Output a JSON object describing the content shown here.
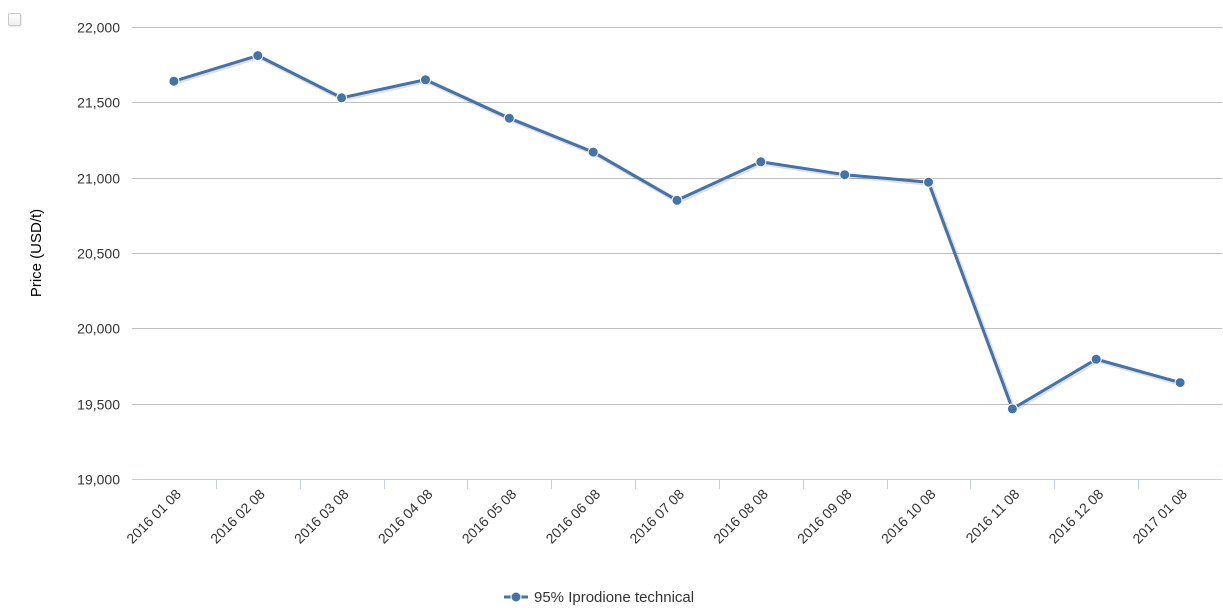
{
  "chart_data": {
    "type": "line",
    "title": "",
    "xlabel": "",
    "ylabel": "Price (USD/t)",
    "ylim": [
      19000,
      22000
    ],
    "yticks": [
      19000,
      19500,
      20000,
      20500,
      21000,
      21500,
      22000
    ],
    "ytick_labels": [
      "19,000",
      "19,500",
      "20,000",
      "20,500",
      "21,000",
      "21,500",
      "22,000"
    ],
    "categories": [
      "2016 01 08",
      "2016 02 08",
      "2016 03 08",
      "2016 04 08",
      "2016 05 08",
      "2016 06 08",
      "2016 07 08",
      "2016 08 08",
      "2016 09 08",
      "2016 10 08",
      "2016 11 08",
      "2016 12 08",
      "2017 01 08"
    ],
    "series": [
      {
        "name": "95% Iprodione technical",
        "color": "#4572a7",
        "values": [
          21640,
          21810,
          21530,
          21650,
          21395,
          21170,
          20850,
          21105,
          21020,
          20970,
          19465,
          19795,
          19640
        ]
      }
    ],
    "grid": true,
    "legend_position": "bottom-center"
  },
  "ui": {
    "export_button_icon": "menu-square-icon"
  }
}
